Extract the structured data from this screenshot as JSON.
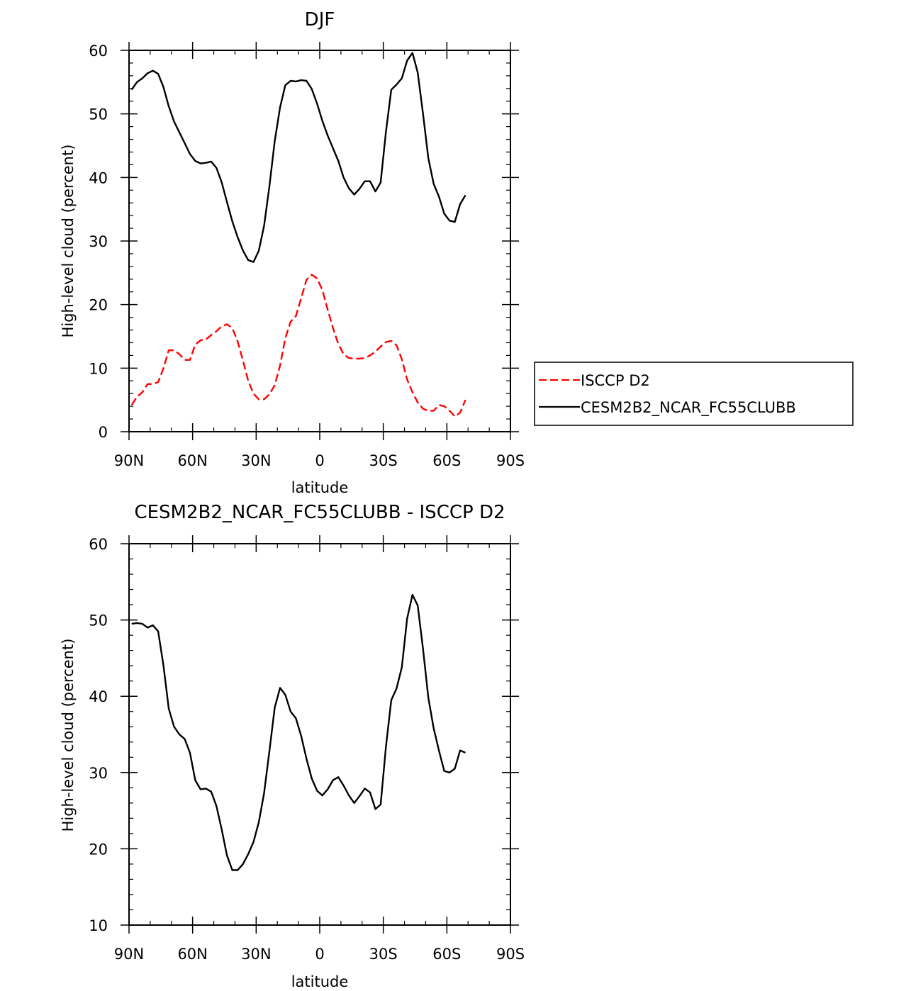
{
  "chart_data": [
    {
      "type": "line",
      "title": "DJF",
      "xlabel": "latitude",
      "ylabel": "High-level cloud (percent)",
      "xlim": [
        90,
        -90
      ],
      "ylim": [
        0,
        60
      ],
      "xticks": [
        {
          "value": 90,
          "label": "90N"
        },
        {
          "value": 60,
          "label": "60N"
        },
        {
          "value": 30,
          "label": "30N"
        },
        {
          "value": 0,
          "label": "0"
        },
        {
          "value": -30,
          "label": "30S"
        },
        {
          "value": -60,
          "label": "60S"
        },
        {
          "value": -90,
          "label": "90S"
        }
      ],
      "yticks": [
        {
          "value": 0,
          "label": "0"
        },
        {
          "value": 10,
          "label": "10"
        },
        {
          "value": 20,
          "label": "20"
        },
        {
          "value": 30,
          "label": "30"
        },
        {
          "value": 40,
          "label": "40"
        },
        {
          "value": 50,
          "label": "50"
        },
        {
          "value": 60,
          "label": "60"
        }
      ],
      "legend_placement": "right",
      "series": [
        {
          "name": "ISCCP D2",
          "color": "#ff0000",
          "dash": "dashed",
          "points": [
            [
              88.75,
              4.2
            ],
            [
              86.25,
              5.5
            ],
            [
              83.75,
              6.2
            ],
            [
              81.25,
              7.5
            ],
            [
              78.75,
              7.5
            ],
            [
              76.25,
              7.8
            ],
            [
              73.75,
              10
            ],
            [
              71.25,
              12.8
            ],
            [
              68.75,
              12.8
            ],
            [
              66.25,
              12.2
            ],
            [
              63.75,
              11.3
            ],
            [
              61.25,
              11.3
            ],
            [
              58.75,
              13.7
            ],
            [
              56.25,
              14.4
            ],
            [
              53.75,
              14.5
            ],
            [
              51.25,
              15.2
            ],
            [
              48.75,
              15.8
            ],
            [
              46.25,
              16.6
            ],
            [
              43.75,
              16.9
            ],
            [
              41.25,
              16.3
            ],
            [
              38.75,
              14.2
            ],
            [
              36.25,
              11.2
            ],
            [
              33.75,
              8
            ],
            [
              31.25,
              6
            ],
            [
              28.75,
              5.1
            ],
            [
              26.25,
              5.1
            ],
            [
              23.75,
              5.9
            ],
            [
              21.25,
              7.3
            ],
            [
              18.75,
              10.4
            ],
            [
              16.25,
              14.7
            ],
            [
              13.75,
              17.3
            ],
            [
              11.25,
              18.2
            ],
            [
              8.75,
              21
            ],
            [
              6.25,
              23.9
            ],
            [
              3.75,
              24.7
            ],
            [
              1.25,
              24.1
            ],
            [
              -1.25,
              22.3
            ],
            [
              -3.75,
              19.2
            ],
            [
              -6.25,
              16.3
            ],
            [
              -8.75,
              13.8
            ],
            [
              -11.25,
              12.2
            ],
            [
              -13.75,
              11.6
            ],
            [
              -16.25,
              11.5
            ],
            [
              -18.75,
              11.5
            ],
            [
              -21.25,
              11.6
            ],
            [
              -23.75,
              12
            ],
            [
              -26.25,
              12.6
            ],
            [
              -28.75,
              13.4
            ],
            [
              -31.25,
              14.1
            ],
            [
              -33.75,
              14.3
            ],
            [
              -36.25,
              13.6
            ],
            [
              -38.75,
              11.4
            ],
            [
              -41.25,
              8.2
            ],
            [
              -43.75,
              6.2
            ],
            [
              -46.25,
              4.6
            ],
            [
              -48.75,
              3.6
            ],
            [
              -51.25,
              3.3
            ],
            [
              -53.75,
              3.3
            ],
            [
              -56.25,
              4.2
            ],
            [
              -58.75,
              4
            ],
            [
              -61.25,
              3.3
            ],
            [
              -63.75,
              2.4
            ],
            [
              -66.25,
              3
            ],
            [
              -68.75,
              5
            ]
          ]
        },
        {
          "name": "CESM2B2_NCAR_FC55CLUBB",
          "color": "#000000",
          "dash": "solid",
          "points": [
            [
              88.75,
              53.8
            ],
            [
              86.25,
              55
            ],
            [
              83.75,
              55.6
            ],
            [
              81.25,
              56.4
            ],
            [
              78.75,
              56.8
            ],
            [
              76.25,
              56.3
            ],
            [
              73.75,
              54.2
            ],
            [
              71.25,
              51.2
            ],
            [
              68.75,
              48.8
            ],
            [
              66.25,
              47.1
            ],
            [
              63.75,
              45.4
            ],
            [
              61.25,
              43.7
            ],
            [
              58.75,
              42.6
            ],
            [
              56.25,
              42.2
            ],
            [
              53.75,
              42.3
            ],
            [
              51.25,
              42.5
            ],
            [
              48.75,
              41.5
            ],
            [
              46.25,
              39.2
            ],
            [
              43.75,
              36.1
            ],
            [
              41.25,
              33.1
            ],
            [
              38.75,
              30.6
            ],
            [
              36.25,
              28.5
            ],
            [
              33.75,
              27
            ],
            [
              31.25,
              26.7
            ],
            [
              28.75,
              28.5
            ],
            [
              26.25,
              32.4
            ],
            [
              23.75,
              38.6
            ],
            [
              21.25,
              45.7
            ],
            [
              18.75,
              51
            ],
            [
              16.25,
              54.5
            ],
            [
              13.75,
              55.2
            ],
            [
              11.25,
              55.1
            ],
            [
              8.75,
              55.3
            ],
            [
              6.25,
              55.2
            ],
            [
              3.75,
              53.9
            ],
            [
              1.25,
              51.6
            ],
            [
              -1.25,
              48.9
            ],
            [
              -3.75,
              46.6
            ],
            [
              -6.25,
              44.6
            ],
            [
              -8.75,
              42.6
            ],
            [
              -11.25,
              40
            ],
            [
              -13.75,
              38.3
            ],
            [
              -16.25,
              37.3
            ],
            [
              -18.75,
              38.2
            ],
            [
              -21.25,
              39.4
            ],
            [
              -23.75,
              39.4
            ],
            [
              -26.25,
              37.8
            ],
            [
              -28.75,
              39.2
            ],
            [
              -31.25,
              47.2
            ],
            [
              -33.75,
              53.8
            ],
            [
              -36.25,
              54.6
            ],
            [
              -38.75,
              55.6
            ],
            [
              -41.25,
              58.4
            ],
            [
              -43.75,
              59.6
            ],
            [
              -46.25,
              56.5
            ],
            [
              -48.75,
              50
            ],
            [
              -51.25,
              43
            ],
            [
              -53.75,
              39
            ],
            [
              -56.25,
              37
            ],
            [
              -58.75,
              34.3
            ],
            [
              -61.25,
              33.2
            ],
            [
              -63.75,
              33
            ],
            [
              -66.25,
              35.8
            ],
            [
              -68.75,
              37.2
            ]
          ]
        }
      ]
    },
    {
      "type": "line",
      "title": "CESM2B2_NCAR_FC55CLUBB - ISCCP D2",
      "xlabel": "latitude",
      "ylabel": "High-level cloud (percent)",
      "xlim": [
        90,
        -90
      ],
      "ylim": [
        10,
        60
      ],
      "xticks": [
        {
          "value": 90,
          "label": "90N"
        },
        {
          "value": 60,
          "label": "60N"
        },
        {
          "value": 30,
          "label": "30N"
        },
        {
          "value": 0,
          "label": "0"
        },
        {
          "value": -30,
          "label": "30S"
        },
        {
          "value": -60,
          "label": "60S"
        },
        {
          "value": -90,
          "label": "90S"
        }
      ],
      "yticks": [
        {
          "value": 10,
          "label": "10"
        },
        {
          "value": 20,
          "label": "20"
        },
        {
          "value": 30,
          "label": "30"
        },
        {
          "value": 40,
          "label": "40"
        },
        {
          "value": 50,
          "label": "50"
        },
        {
          "value": 60,
          "label": "60"
        }
      ],
      "series": [
        {
          "color": "#000000",
          "dash": "solid",
          "points": [
            [
              88.75,
              49.5
            ],
            [
              86.25,
              49.6
            ],
            [
              83.75,
              49.5
            ],
            [
              81.25,
              49
            ],
            [
              78.75,
              49.3
            ],
            [
              76.25,
              48.5
            ],
            [
              73.75,
              44
            ],
            [
              71.25,
              38.4
            ],
            [
              68.75,
              36
            ],
            [
              66.25,
              35
            ],
            [
              63.75,
              34.4
            ],
            [
              61.25,
              32.6
            ],
            [
              58.75,
              29
            ],
            [
              56.25,
              27.8
            ],
            [
              53.75,
              27.9
            ],
            [
              51.25,
              27.5
            ],
            [
              48.75,
              25.6
            ],
            [
              46.25,
              22.5
            ],
            [
              43.75,
              19.1
            ],
            [
              41.25,
              17.2
            ],
            [
              38.75,
              17.2
            ],
            [
              36.25,
              18
            ],
            [
              33.75,
              19.3
            ],
            [
              31.25,
              20.9
            ],
            [
              28.75,
              23.5
            ],
            [
              26.25,
              27.3
            ],
            [
              23.75,
              32.8
            ],
            [
              21.25,
              38.5
            ],
            [
              18.75,
              41.1
            ],
            [
              16.25,
              40.2
            ],
            [
              13.75,
              38
            ],
            [
              11.25,
              37.1
            ],
            [
              8.75,
              34.8
            ],
            [
              6.25,
              31.8
            ],
            [
              3.75,
              29.2
            ],
            [
              1.25,
              27.6
            ],
            [
              -1.25,
              27
            ],
            [
              -3.75,
              27.8
            ],
            [
              -6.25,
              29
            ],
            [
              -8.75,
              29.4
            ],
            [
              -11.25,
              28.3
            ],
            [
              -13.75,
              27
            ],
            [
              -16.25,
              26
            ],
            [
              -18.75,
              26.9
            ],
            [
              -21.25,
              27.9
            ],
            [
              -23.75,
              27.4
            ],
            [
              -26.25,
              25.2
            ],
            [
              -28.75,
              25.8
            ],
            [
              -31.25,
              33.4
            ],
            [
              -33.75,
              39.5
            ],
            [
              -36.25,
              41
            ],
            [
              -38.75,
              43.8
            ],
            [
              -41.25,
              50.2
            ],
            [
              -43.75,
              53.3
            ],
            [
              -46.25,
              51.9
            ],
            [
              -48.75,
              46.2
            ],
            [
              -51.25,
              39.8
            ],
            [
              -53.75,
              35.8
            ],
            [
              -56.25,
              32.9
            ],
            [
              -58.75,
              30.2
            ],
            [
              -61.25,
              30
            ],
            [
              -63.75,
              30.5
            ],
            [
              -66.25,
              32.9
            ],
            [
              -68.75,
              32.6
            ]
          ]
        }
      ]
    }
  ]
}
